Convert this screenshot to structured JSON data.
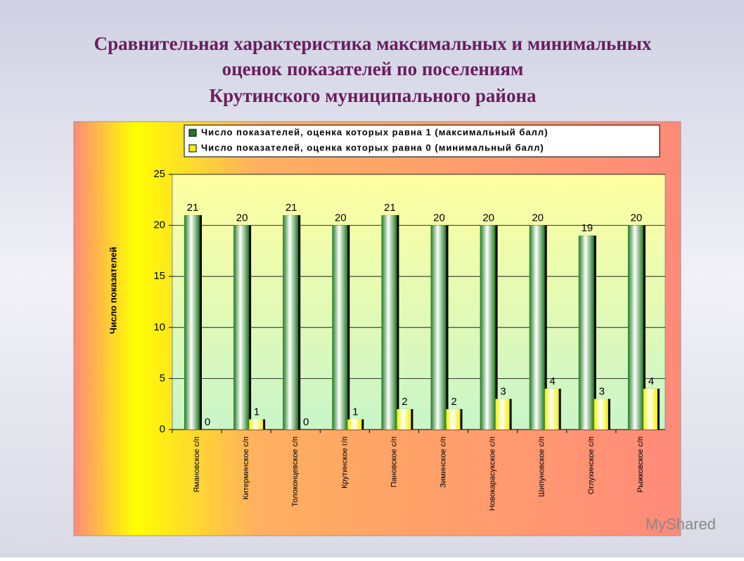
{
  "chart_data": {
    "type": "bar",
    "title": [
      "Сравнительная характеристика максимальных и минимальных",
      "оценок показателей по поселениям",
      "Крутинского муниципального района"
    ],
    "y_label": "Число показателей",
    "categories": [
      "Ямановское с/п",
      "Китерминское с/п",
      "Толоконцевское с/п",
      "Крутинское г/п",
      "Пановское с/п",
      "Зиминское с/п",
      "Новокарасукское с/п",
      "Шипуновское с/п",
      "Оглухинское с/п",
      "Рыжковское с/п"
    ],
    "series": [
      {
        "name": "Число показателей, оценка которых равна 1 (максимальный балл)",
        "color": "#1f7a1f",
        "values": [
          21,
          20,
          21,
          20,
          21,
          20,
          20,
          20,
          19,
          20
        ]
      },
      {
        "name": "Число показателей, оценка которых равна 0 (минимальный балл)",
        "color": "#f2f200",
        "values": [
          0,
          1,
          0,
          1,
          2,
          2,
          3,
          4,
          3,
          4
        ]
      }
    ],
    "ylim": [
      0,
      25
    ],
    "yticks": [
      0,
      5,
      10,
      15,
      20,
      25
    ],
    "grid": true,
    "legend": "top"
  },
  "watermark": "MyShared"
}
